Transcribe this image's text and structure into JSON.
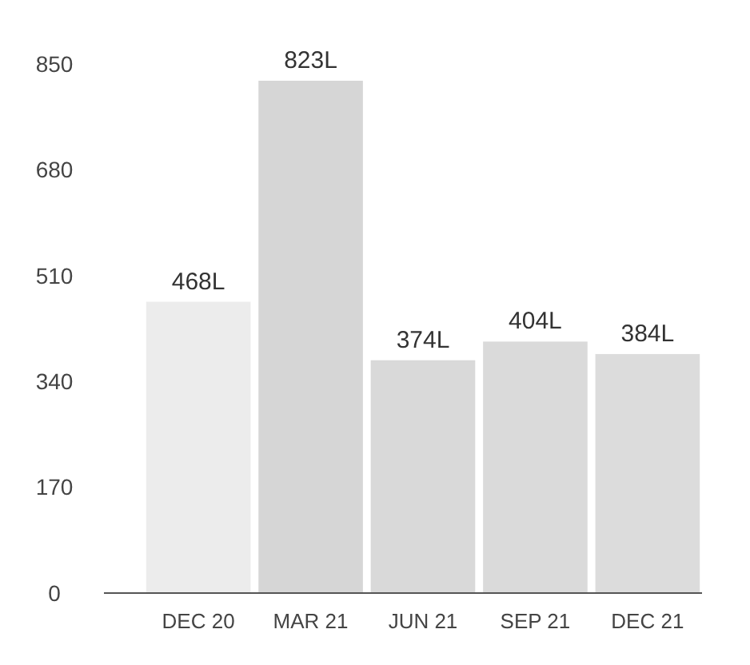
{
  "chart_data": {
    "type": "bar",
    "categories": [
      "DEC 20",
      "MAR 21",
      "JUN 21",
      "SEP 21",
      "DEC 21"
    ],
    "values": [
      468,
      823,
      374,
      404,
      384
    ],
    "colors": [
      "#ececec",
      "#d6d6d6",
      "#d9d9d9",
      "#dadada",
      "#dcdcdc"
    ],
    "value_labels": [
      "468L",
      "823L",
      "374L",
      "404L",
      "384L"
    ],
    "ylim": [
      0,
      850
    ],
    "yticks": [
      0,
      170,
      340,
      510,
      680,
      850
    ],
    "grid": false
  }
}
